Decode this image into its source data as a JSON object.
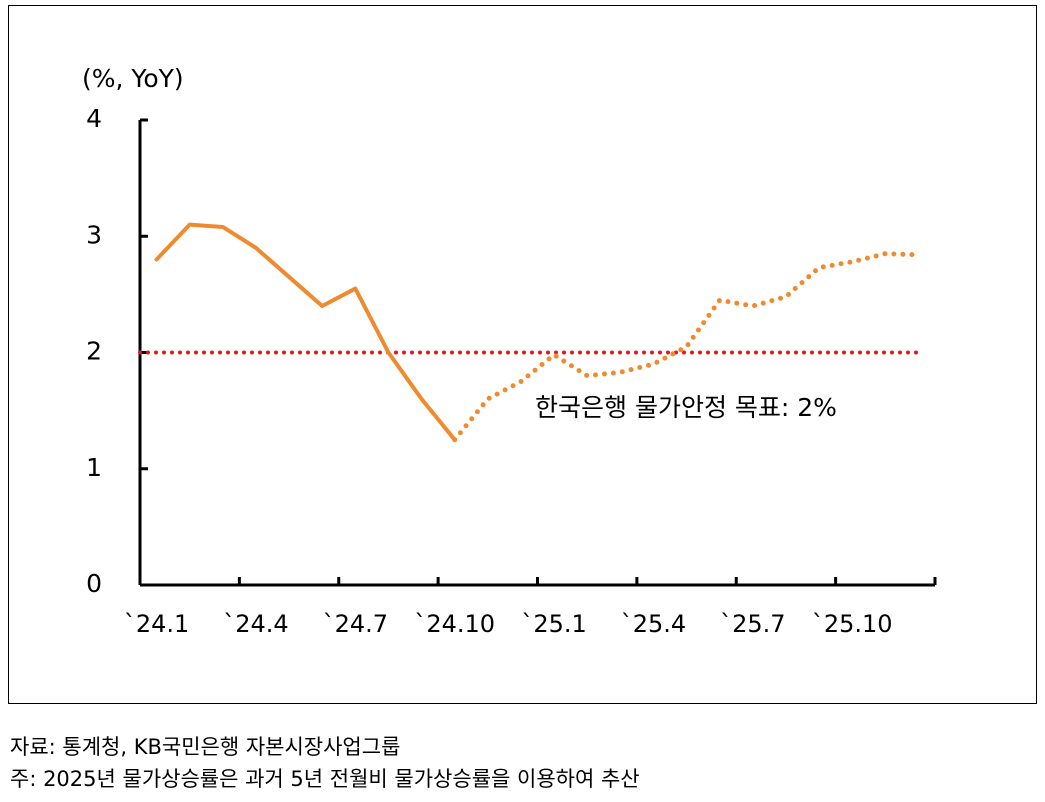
{
  "chart_data": {
    "type": "line",
    "y_label": "(%, YoY)",
    "categories": [
      "`24.1",
      null,
      null,
      "`24.4",
      null,
      null,
      "`24.7",
      null,
      null,
      "`24.10",
      null,
      null,
      "`25.1",
      null,
      null,
      "`25.4",
      null,
      null,
      "`25.7",
      null,
      null,
      "`25.10",
      null,
      null
    ],
    "series": [
      {
        "color": "#f08a2e",
        "style": "solid",
        "values": [
          2.8,
          3.1,
          3.08,
          2.9,
          2.65,
          2.4,
          2.55,
          2.0,
          1.6,
          1.25,
          null,
          null,
          null,
          null,
          null,
          null,
          null,
          null,
          null,
          null,
          null,
          null,
          null,
          null
        ]
      },
      {
        "color": "#f08a2e",
        "style": "dotted",
        "values": [
          null,
          null,
          null,
          null,
          null,
          null,
          null,
          null,
          null,
          1.25,
          1.6,
          1.75,
          1.98,
          1.8,
          1.83,
          1.9,
          2.05,
          2.45,
          2.4,
          2.48,
          2.73,
          2.78,
          2.85,
          2.84
        ]
      }
    ],
    "target": {
      "value": 2,
      "color": "#e8141c",
      "label": "한국은행 물가안정 목표: 2%"
    },
    "ylim": [
      0,
      4
    ],
    "yticks": [
      0,
      1,
      2,
      3,
      4
    ]
  },
  "footnotes": [
    "자료: 통계청, KB국민은행 자본시장사업그룹",
    "주: 2025년 물가상승률은 과거 5년 전월비 물가상승률을 이용하여 추산"
  ]
}
